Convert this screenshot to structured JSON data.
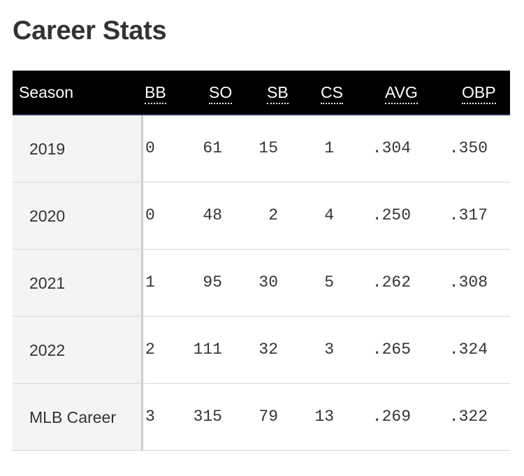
{
  "title": "Career Stats",
  "table": {
    "headers": {
      "season": "Season",
      "bb": "BB",
      "so": "SO",
      "sb": "SB",
      "cs": "CS",
      "avg": "AVG",
      "obp": "OBP"
    },
    "rows": [
      {
        "season": "2019",
        "bb": "0",
        "so": "61",
        "sb": "15",
        "cs": "1",
        "avg": ".304",
        "obp": ".350"
      },
      {
        "season": "2020",
        "bb": "0",
        "so": "48",
        "sb": "2",
        "cs": "4",
        "avg": ".250",
        "obp": ".317"
      },
      {
        "season": "2021",
        "bb": "1",
        "so": "95",
        "sb": "30",
        "cs": "5",
        "avg": ".262",
        "obp": ".308"
      },
      {
        "season": "2022",
        "bb": "2",
        "so": "111",
        "sb": "32",
        "cs": "3",
        "avg": ".265",
        "obp": ".324"
      },
      {
        "season": "MLB Career",
        "bb": "3",
        "so": "315",
        "sb": "79",
        "cs": "13",
        "avg": ".269",
        "obp": ".322"
      }
    ]
  },
  "colors": {
    "header_bg": "#000000",
    "header_text": "#ffffff",
    "season_col_bg": "#f4f4f4",
    "text": "#333333",
    "row_divider": "#d8d8d8"
  }
}
